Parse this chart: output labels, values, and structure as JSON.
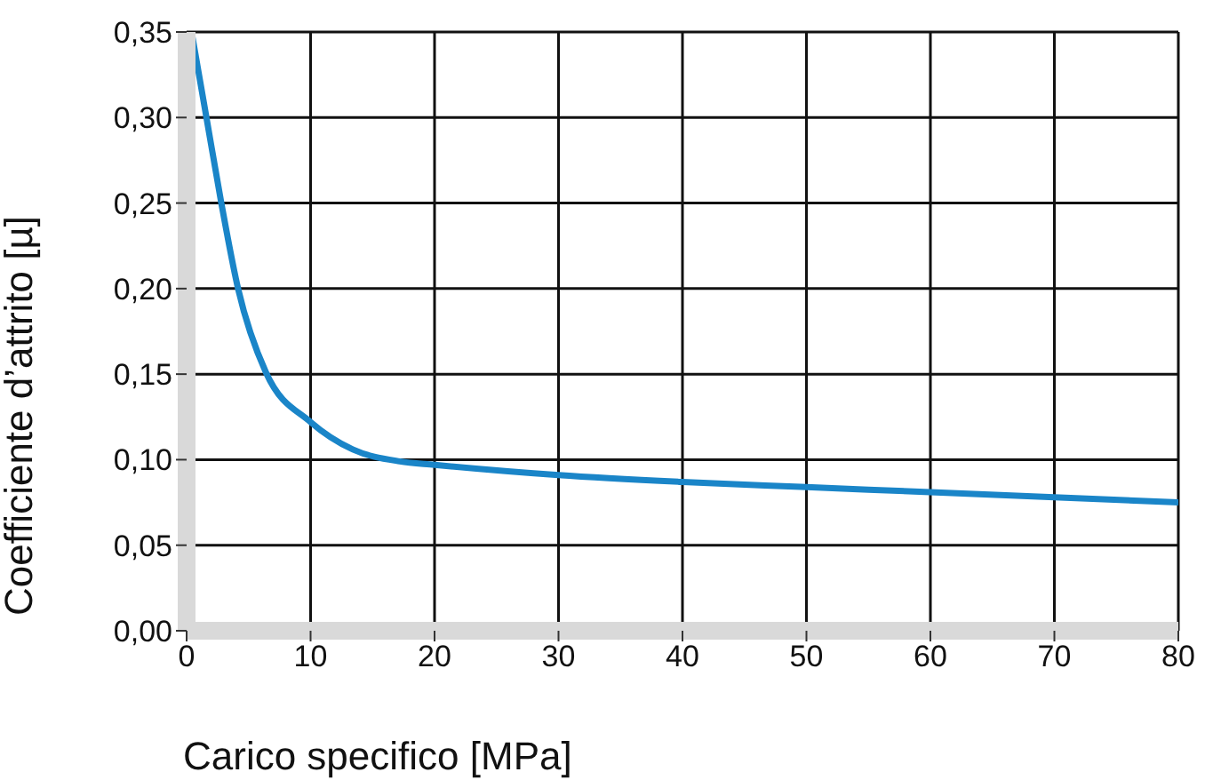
{
  "chart_data": {
    "type": "line",
    "xlabel": "Carico specifico [MPa]",
    "ylabel": "Coefficiente d’attrito [µ]",
    "x": [
      0.4,
      1.6,
      2.8,
      4.15,
      6.4,
      10,
      13.4,
      17.2,
      20,
      30,
      40,
      50,
      60,
      70,
      80
    ],
    "series": [
      {
        "color": "#1a85c8",
        "values": [
          0.35,
          0.3,
          0.25,
          0.2,
          0.151,
          0.122,
          0.106,
          0.099,
          0.097,
          0.091,
          0.087,
          0.084,
          0.081,
          0.078,
          0.075
        ]
      }
    ],
    "xlim": [
      0,
      80
    ],
    "xticks": [
      0,
      10,
      20,
      30,
      40,
      50,
      60,
      70,
      80
    ],
    "ylim": [
      0,
      0.35
    ],
    "yticks": [
      {
        "value": 0,
        "label": "0,00"
      },
      {
        "value": 0.05,
        "label": "0,05"
      },
      {
        "value": 0.1,
        "label": "0,10"
      },
      {
        "value": 0.15,
        "label": "0,15"
      },
      {
        "value": 0.2,
        "label": "0,20"
      },
      {
        "value": 0.25,
        "label": "0,25"
      },
      {
        "value": 0.3,
        "label": "0,30"
      },
      {
        "value": 0.35,
        "label": "0,35"
      }
    ],
    "grid": true,
    "legend": false
  }
}
